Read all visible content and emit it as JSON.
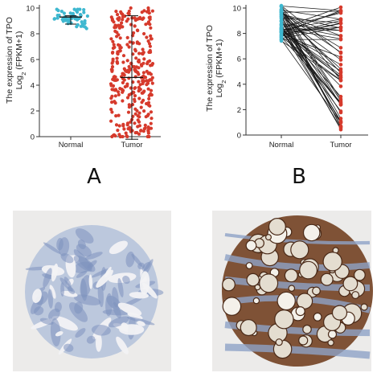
{
  "panels": {
    "a_label": "A",
    "b_label": "B"
  },
  "colors": {
    "normal": "#3fb8d0",
    "tumor": "#d63a2c",
    "axis": "#333333",
    "ihc_background": "#ecebea",
    "ihc_low_tissue": "#b9c6dc",
    "ihc_low_stain": "#7e92bd",
    "ihc_high_tissue": "#8a5a3c",
    "ihc_high_colloid": "#e4ddd0",
    "ihc_high_stroma": "#8fa2c7"
  },
  "icons": {
    "ihc_left": "tissue-core-low-staining-icon",
    "ihc_right": "tissue-core-high-staining-icon"
  },
  "chart_data": [
    {
      "type": "scatter",
      "variant": "jitter-dot-plot-with-mean-sd",
      "ylabel_line1": "The expression of TPO",
      "ylabel_line2_pre": "Log",
      "ylabel_line2_sub": "2",
      "ylabel_line2_post": " (FPKM+1)",
      "categories": [
        "Normal",
        "Tumor"
      ],
      "ylim": [
        0,
        10
      ],
      "yticks": [
        0,
        2,
        4,
        6,
        8,
        10
      ],
      "grid": false,
      "summary": [
        {
          "name": "Normal",
          "mean": 9.3,
          "sd": 0.55,
          "n": 58
        },
        {
          "name": "Tumor",
          "mean": 4.6,
          "sd": 4.8,
          "n": 510
        }
      ]
    },
    {
      "type": "line",
      "variant": "paired-dot-plot",
      "ylabel_line1": "The expression of TPO",
      "ylabel_line2_pre": "Log",
      "ylabel_line2_sub": "2",
      "ylabel_line2_post": " (FPKM+1)",
      "categories": [
        "Normal",
        "Tumor"
      ],
      "ylim": [
        0,
        10
      ],
      "yticks": [
        0,
        2,
        4,
        6,
        8,
        10
      ],
      "grid": false,
      "n_pairs": 58
    }
  ]
}
